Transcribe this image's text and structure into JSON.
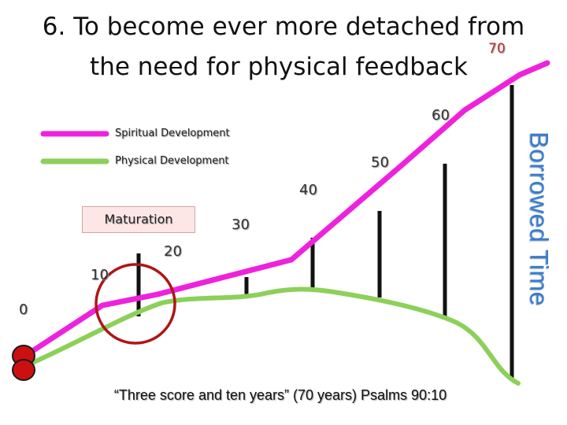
{
  "slide": {
    "title_line1": "6. To become ever more detached from",
    "title_line2": "the need for physical feedback",
    "side_label": "Borrowed Time",
    "quote": "“Three score and ten years” (70 years) Psalms 90:10",
    "maturation_label": "Maturation"
  },
  "legend": [
    {
      "label": "Spiritual Development",
      "color": "#ee22dd"
    },
    {
      "label": "Physical Development",
      "color": "#8cd05a"
    }
  ],
  "ages": [
    "0",
    "10",
    "20",
    "30",
    "40",
    "50",
    "60",
    "70"
  ],
  "colors": {
    "spiritual_line": "#ee22dd",
    "physical_line": "#8cd05a",
    "markers": "#111111",
    "circle": "#b01515",
    "start_dots": "#cc1010",
    "side_label": "#3a7cc9"
  }
}
